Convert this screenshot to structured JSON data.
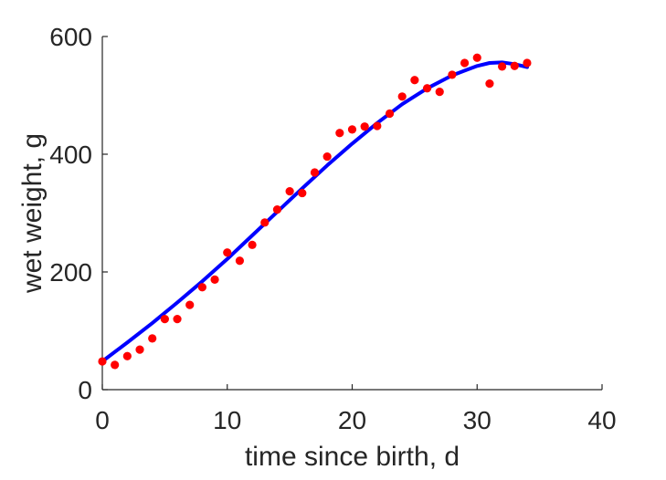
{
  "chart_data": {
    "type": "scatter",
    "xlabel": "time since birth, d",
    "ylabel": "wet weight, g",
    "xlim": [
      0,
      40
    ],
    "ylim": [
      0,
      600
    ],
    "x_ticks": [
      "0",
      "10",
      "20",
      "30",
      "40"
    ],
    "y_ticks": [
      "0",
      "200",
      "400",
      "600"
    ],
    "grid": false,
    "series": [
      {
        "kind": "scatter",
        "color": "#ff0000",
        "points": [
          [
            0,
            48
          ],
          [
            1,
            42
          ],
          [
            2,
            57
          ],
          [
            3,
            68
          ],
          [
            4,
            87
          ],
          [
            5,
            120
          ],
          [
            6,
            120
          ],
          [
            7,
            144
          ],
          [
            8,
            174
          ],
          [
            9,
            187
          ],
          [
            10,
            233
          ],
          [
            11,
            219
          ],
          [
            12,
            246
          ],
          [
            13,
            284
          ],
          [
            14,
            306
          ],
          [
            15,
            337
          ],
          [
            16,
            334
          ],
          [
            17,
            369
          ],
          [
            18,
            396
          ],
          [
            19,
            436
          ],
          [
            20,
            442
          ],
          [
            21,
            447
          ],
          [
            22,
            448
          ],
          [
            23,
            469
          ],
          [
            24,
            498
          ],
          [
            25,
            526
          ],
          [
            26,
            512
          ],
          [
            27,
            506
          ],
          [
            28,
            535
          ],
          [
            29,
            555
          ],
          [
            30,
            564
          ],
          [
            31,
            520
          ],
          [
            32,
            549
          ],
          [
            33,
            550
          ],
          [
            34,
            555
          ]
        ]
      },
      {
        "kind": "line",
        "color": "#0000ff",
        "points": [
          [
            0,
            48
          ],
          [
            2,
            80
          ],
          [
            4,
            113
          ],
          [
            6,
            148
          ],
          [
            8,
            184
          ],
          [
            10,
            222
          ],
          [
            12,
            262
          ],
          [
            14,
            302
          ],
          [
            16,
            342
          ],
          [
            18,
            381
          ],
          [
            20,
            418
          ],
          [
            22,
            453
          ],
          [
            24,
            485
          ],
          [
            26,
            512
          ],
          [
            28,
            534
          ],
          [
            30,
            550
          ],
          [
            31,
            555
          ],
          [
            32,
            556
          ],
          [
            33,
            553
          ],
          [
            34,
            548
          ]
        ]
      }
    ]
  }
}
